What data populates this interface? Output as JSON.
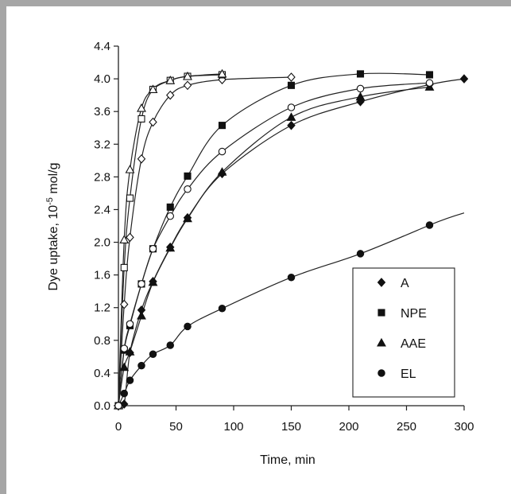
{
  "chart_data": {
    "type": "scatter",
    "xlabel": "Time, min",
    "ylabel_prefix": "Dye uptake, 10",
    "ylabel_sup": "-5",
    "ylabel_suffix": " mol/g",
    "xlim": [
      0,
      300
    ],
    "ylim": [
      0,
      4.4
    ],
    "x_ticks": [
      "0",
      "50",
      "100",
      "150",
      "200",
      "250",
      "300"
    ],
    "y_ticks": [
      "0.0",
      "0.4",
      "0.8",
      "1.2",
      "1.6",
      "2.0",
      "2.4",
      "2.8",
      "3.2",
      "3.6",
      "4.0",
      "4.4"
    ],
    "grid": false,
    "legend_position": "bottom-right",
    "series": [
      {
        "name": "A",
        "marker": "diamond",
        "filled": true,
        "x": [
          0,
          5,
          10,
          20,
          30,
          45,
          60,
          90,
          150,
          210,
          270,
          300
        ],
        "y": [
          0,
          0.02,
          0.65,
          1.17,
          1.52,
          1.94,
          2.3,
          2.84,
          3.43,
          3.72,
          3.93,
          4.0
        ]
      },
      {
        "name": "NPE",
        "marker": "square",
        "filled": true,
        "x": [
          0,
          5,
          10,
          20,
          30,
          45,
          60,
          90,
          150,
          210,
          270
        ],
        "y": [
          0,
          0.68,
          0.98,
          1.49,
          1.92,
          2.43,
          2.81,
          3.43,
          3.92,
          4.06,
          4.05
        ]
      },
      {
        "name": "AAE",
        "marker": "triangle",
        "filled": true,
        "x": [
          0,
          5,
          10,
          20,
          30,
          45,
          60,
          90,
          150,
          210,
          270
        ],
        "y": [
          0,
          0.47,
          0.66,
          1.1,
          1.51,
          1.93,
          2.29,
          2.86,
          3.53,
          3.78,
          3.9
        ]
      },
      {
        "name": "EL",
        "marker": "circle",
        "filled": true,
        "x": [
          0,
          5,
          10,
          20,
          30,
          45,
          60,
          90,
          150,
          210,
          270
        ],
        "y": [
          0,
          0.15,
          0.31,
          0.49,
          0.63,
          0.74,
          0.97,
          1.19,
          1.57,
          1.86,
          2.21
        ]
      },
      {
        "marker": "diamond",
        "filled": false,
        "x": [
          0,
          5,
          10,
          20,
          30,
          45,
          60,
          90,
          150
        ],
        "y": [
          0,
          1.24,
          2.06,
          3.02,
          3.47,
          3.8,
          3.92,
          3.99,
          4.02
        ]
      },
      {
        "marker": "square",
        "filled": false,
        "x": [
          0,
          5,
          10,
          20,
          30,
          45,
          60,
          90
        ],
        "y": [
          0,
          1.69,
          2.54,
          3.51,
          3.87,
          3.98,
          4.03,
          4.05
        ]
      },
      {
        "marker": "triangle",
        "filled": false,
        "x": [
          0,
          5,
          10,
          20,
          30,
          45,
          60,
          90
        ],
        "y": [
          0,
          2.03,
          2.89,
          3.64,
          3.87,
          3.98,
          4.03,
          4.06
        ]
      },
      {
        "marker": "circle",
        "filled": false,
        "x": [
          0,
          5,
          10,
          20,
          30,
          45,
          60,
          90,
          150,
          210,
          270
        ],
        "y": [
          0,
          0.7,
          1.0,
          1.49,
          1.92,
          2.32,
          2.65,
          3.11,
          3.65,
          3.88,
          3.95
        ]
      }
    ]
  },
  "colors": {
    "marker": "#111111",
    "line": "#222222",
    "background": "#ffffff",
    "frame": "#a6a6a6"
  }
}
